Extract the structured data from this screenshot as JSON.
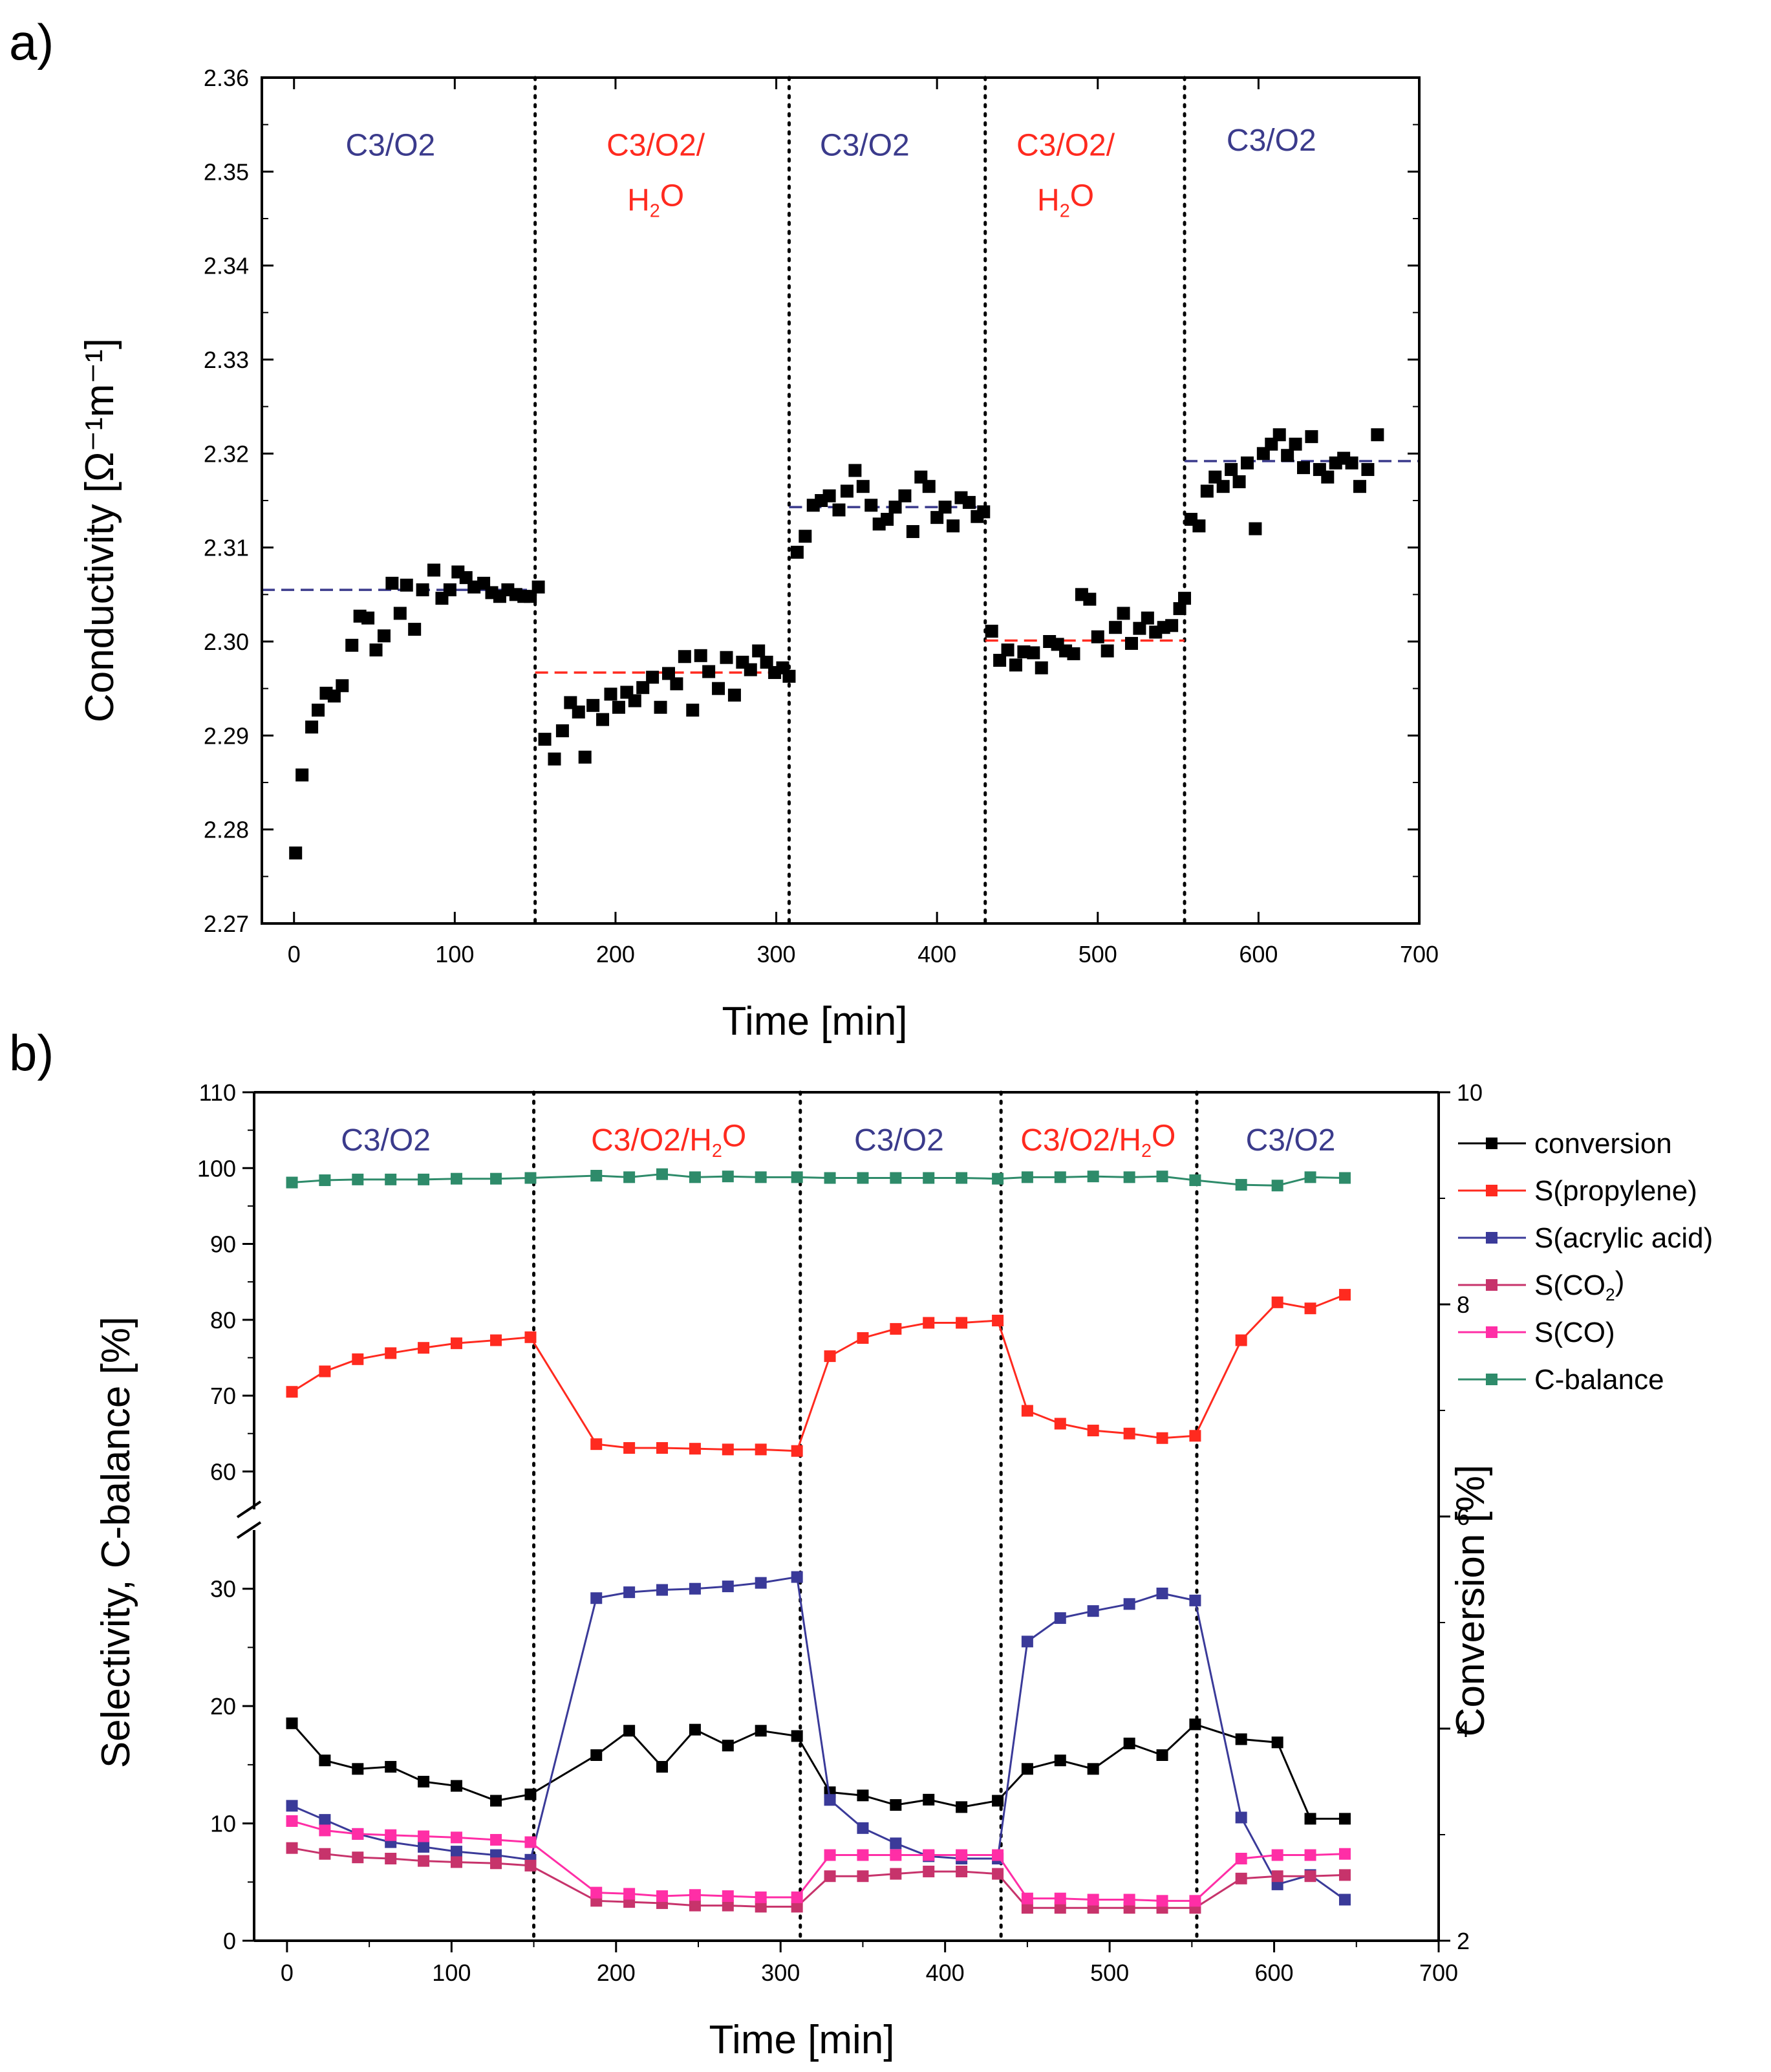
{
  "colors": {
    "blue": "#3b3b8c",
    "red": "#ff2a1f",
    "black": "#000000",
    "acrylic": "#3a3a99",
    "co2": "#c7336b",
    "co": "#ff2ea6",
    "cbalance": "#2e8b6a"
  },
  "chart_data": [
    {
      "id": "panel-a",
      "panel_label": "a)",
      "type": "scatter",
      "xlabel": "Time [min]",
      "ylabel": "Conductivity  [Ω⁻¹m⁻¹]",
      "xlim": [
        -20,
        700
      ],
      "ylim": [
        2.27,
        2.36
      ],
      "x_ticks": [
        0,
        100,
        200,
        300,
        400,
        500,
        600,
        700
      ],
      "y_ticks": [
        2.27,
        2.28,
        2.29,
        2.3,
        2.31,
        2.32,
        2.33,
        2.34,
        2.35,
        2.36
      ],
      "y_tick_labels": [
        "2.27",
        "2.28",
        "2.29",
        "2.30",
        "2.31",
        "2.32",
        "2.33",
        "2.34",
        "2.35",
        "2.36"
      ],
      "phase_boundaries": [
        150,
        308,
        430,
        554
      ],
      "phase_labels": [
        {
          "lines": [
            "C3/O2"
          ],
          "x": 60,
          "y": 2.3555,
          "color": "blue"
        },
        {
          "lines": [
            "C3/O2/",
            "H2O"
          ],
          "x": 225,
          "y": 2.3555,
          "color": "red"
        },
        {
          "lines": [
            "C3/O2"
          ],
          "x": 355,
          "y": 2.3555,
          "color": "blue"
        },
        {
          "lines": [
            "C3/O2/",
            "H2O"
          ],
          "x": 480,
          "y": 2.3555,
          "color": "red"
        },
        {
          "lines": [
            "C3/O2"
          ],
          "x": 608,
          "y": 2.356,
          "color": "blue"
        }
      ],
      "reference_lines": [
        {
          "x0": -20,
          "x1": 150,
          "y": 2.3055,
          "color": "blue"
        },
        {
          "x0": 150,
          "x1": 308,
          "y": 2.2967,
          "color": "red"
        },
        {
          "x0": 308,
          "x1": 430,
          "y": 2.3143,
          "color": "blue"
        },
        {
          "x0": 430,
          "x1": 554,
          "y": 2.3001,
          "color": "red"
        },
        {
          "x0": 554,
          "x1": 700,
          "y": 2.3192,
          "color": "blue"
        }
      ],
      "points": [
        [
          1,
          2.2775
        ],
        [
          5,
          2.2858
        ],
        [
          11,
          2.2909
        ],
        [
          15,
          2.2927
        ],
        [
          20,
          2.2945
        ],
        [
          25,
          2.2942
        ],
        [
          30,
          2.2953
        ],
        [
          36,
          2.2996
        ],
        [
          41,
          2.3027
        ],
        [
          46,
          2.3025
        ],
        [
          51,
          2.2991
        ],
        [
          56,
          2.3006
        ],
        [
          61,
          2.3062
        ],
        [
          66,
          2.303
        ],
        [
          70,
          2.306
        ],
        [
          75,
          2.3013
        ],
        [
          80,
          2.3055
        ],
        [
          87,
          2.3076
        ],
        [
          92,
          2.3046
        ],
        [
          97,
          2.3055
        ],
        [
          102,
          2.3074
        ],
        [
          107,
          2.3068
        ],
        [
          112,
          2.3058
        ],
        [
          118,
          2.3062
        ],
        [
          123,
          2.3052
        ],
        [
          128,
          2.3048
        ],
        [
          133,
          2.3055
        ],
        [
          138,
          2.305
        ],
        [
          143,
          2.3048
        ],
        [
          147,
          2.3048
        ],
        [
          152,
          2.3058
        ],
        [
          156,
          2.2896
        ],
        [
          162,
          2.2875
        ],
        [
          167,
          2.2905
        ],
        [
          172,
          2.2935
        ],
        [
          177,
          2.2925
        ],
        [
          181,
          2.2877
        ],
        [
          186,
          2.2932
        ],
        [
          192,
          2.2917
        ],
        [
          197,
          2.2944
        ],
        [
          202,
          2.293
        ],
        [
          207,
          2.2946
        ],
        [
          212,
          2.2937
        ],
        [
          217,
          2.2951
        ],
        [
          223,
          2.2962
        ],
        [
          228,
          2.293
        ],
        [
          233,
          2.2966
        ],
        [
          238,
          2.2955
        ],
        [
          243,
          2.2984
        ],
        [
          248,
          2.2927
        ],
        [
          253,
          2.2985
        ],
        [
          258,
          2.2968
        ],
        [
          264,
          2.295
        ],
        [
          269,
          2.2983
        ],
        [
          274,
          2.2943
        ],
        [
          279,
          2.2978
        ],
        [
          284,
          2.297
        ],
        [
          289,
          2.299
        ],
        [
          294,
          2.2978
        ],
        [
          299,
          2.2967
        ],
        [
          304,
          2.2972
        ],
        [
          308,
          2.2963
        ],
        [
          313,
          2.3095
        ],
        [
          318,
          2.3112
        ],
        [
          323,
          2.3145
        ],
        [
          328,
          2.315
        ],
        [
          333,
          2.3155
        ],
        [
          339,
          2.314
        ],
        [
          344,
          2.316
        ],
        [
          349,
          2.3182
        ],
        [
          354,
          2.3165
        ],
        [
          359,
          2.3145
        ],
        [
          364,
          2.3125
        ],
        [
          369,
          2.313
        ],
        [
          374,
          2.3143
        ],
        [
          380,
          2.3155
        ],
        [
          385,
          2.3117
        ],
        [
          390,
          2.3175
        ],
        [
          395,
          2.3165
        ],
        [
          400,
          2.3132
        ],
        [
          405,
          2.3143
        ],
        [
          410,
          2.3123
        ],
        [
          415,
          2.3153
        ],
        [
          420,
          2.3148
        ],
        [
          425,
          2.3133
        ],
        [
          429,
          2.3138
        ],
        [
          434,
          2.3011
        ],
        [
          439,
          2.298
        ],
        [
          444,
          2.2991
        ],
        [
          449,
          2.2975
        ],
        [
          454,
          2.2989
        ],
        [
          460,
          2.2988
        ],
        [
          465,
          2.2972
        ],
        [
          470,
          2.3
        ],
        [
          475,
          2.2997
        ],
        [
          480,
          2.299
        ],
        [
          485,
          2.2987
        ],
        [
          490,
          2.305
        ],
        [
          495,
          2.3045
        ],
        [
          500,
          2.3005
        ],
        [
          506,
          2.299
        ],
        [
          511,
          2.3015
        ],
        [
          516,
          2.303
        ],
        [
          521,
          2.2998
        ],
        [
          526,
          2.3014
        ],
        [
          531,
          2.3025
        ],
        [
          536,
          2.301
        ],
        [
          541,
          2.3015
        ],
        [
          546,
          2.3017
        ],
        [
          551,
          2.3035
        ],
        [
          554,
          2.3046
        ],
        [
          558,
          2.313
        ],
        [
          563,
          2.3123
        ],
        [
          568,
          2.316
        ],
        [
          573,
          2.3175
        ],
        [
          578,
          2.3165
        ],
        [
          583,
          2.3183
        ],
        [
          588,
          2.317
        ],
        [
          593,
          2.319
        ],
        [
          598,
          2.312
        ],
        [
          603,
          2.32
        ],
        [
          608,
          2.321
        ],
        [
          613,
          2.322
        ],
        [
          618,
          2.3198
        ],
        [
          623,
          2.321
        ],
        [
          628,
          2.3185
        ],
        [
          633,
          2.3218
        ],
        [
          638,
          2.3183
        ],
        [
          643,
          2.3175
        ],
        [
          648,
          2.319
        ],
        [
          653,
          2.3195
        ],
        [
          658,
          2.319
        ],
        [
          663,
          2.3165
        ],
        [
          668,
          2.3183
        ],
        [
          674,
          2.322
        ]
      ]
    },
    {
      "id": "panel-b",
      "panel_label": "b)",
      "type": "line",
      "xlabel": "Time [min]",
      "ylabel_left": "Selectivity, C-balance [%]",
      "ylabel_right": "Conversion [%]",
      "xlim": [
        -20,
        700
      ],
      "x_ticks": [
        0,
        100,
        200,
        300,
        400,
        500,
        600,
        700
      ],
      "y_left_lower": {
        "range": [
          0,
          35
        ],
        "ticks": [
          0,
          10,
          20,
          30
        ]
      },
      "y_left_upper": {
        "range": [
          55,
          110
        ],
        "ticks": [
          60,
          70,
          80,
          90,
          100,
          110
        ]
      },
      "y_right": {
        "range": [
          2,
          10
        ],
        "ticks": [
          2,
          4,
          6,
          8,
          10
        ]
      },
      "phase_boundaries": [
        150,
        312,
        434,
        553
      ],
      "phase_labels": [
        {
          "text": "C3/O2",
          "x": 60,
          "color": "blue"
        },
        {
          "text": "C3/O2/H2O",
          "x": 232,
          "color": "red"
        },
        {
          "text": "C3/O2",
          "x": 372,
          "color": "blue"
        },
        {
          "text": "C3/O2/H2O",
          "x": 493,
          "color": "red"
        },
        {
          "text": "C3/O2",
          "x": 610,
          "color": "blue"
        }
      ],
      "x": [
        3,
        23,
        43,
        63,
        83,
        103,
        127,
        148,
        188,
        208,
        228,
        248,
        268,
        288,
        310,
        330,
        350,
        370,
        390,
        410,
        432,
        450,
        470,
        490,
        512,
        532,
        552,
        580,
        602,
        622,
        643
      ],
      "series": [
        {
          "name": "conversion",
          "color": "black",
          "axis": "right",
          "values": [
            4.05,
            3.7,
            3.62,
            3.64,
            3.5,
            3.46,
            3.32,
            3.38,
            3.75,
            3.98,
            3.64,
            3.99,
            3.84,
            3.98,
            3.93,
            3.4,
            3.37,
            3.28,
            3.33,
            3.26,
            3.32,
            3.62,
            3.7,
            3.62,
            3.86,
            3.75,
            4.04,
            3.9,
            3.87,
            3.15,
            3.15
          ]
        },
        {
          "name": "S(propylene)",
          "color": "red",
          "axis": "left",
          "values": [
            70.5,
            73.2,
            74.8,
            75.6,
            76.3,
            76.9,
            77.3,
            77.7,
            63.6,
            63.1,
            63.1,
            63.0,
            62.9,
            62.9,
            62.7,
            75.2,
            77.6,
            78.8,
            79.6,
            79.6,
            79.9,
            68.0,
            66.3,
            65.4,
            65.0,
            64.4,
            64.7,
            77.3,
            82.3,
            81.5,
            83.3
          ]
        },
        {
          "name": "S(acrylic acid)",
          "color": "acrylic",
          "axis": "left",
          "values": [
            11.5,
            10.3,
            9.1,
            8.4,
            8.0,
            7.6,
            7.3,
            6.9,
            29.2,
            29.7,
            29.9,
            30.0,
            30.2,
            30.5,
            31.0,
            12.0,
            9.6,
            8.3,
            7.2,
            7.0,
            7.0,
            25.5,
            27.5,
            28.1,
            28.7,
            29.6,
            29.0,
            10.5,
            4.8,
            5.6,
            3.5
          ]
        },
        {
          "name": "S(CO2)",
          "color": "co2",
          "axis": "left",
          "values": [
            7.9,
            7.4,
            7.1,
            7.0,
            6.8,
            6.7,
            6.6,
            6.4,
            3.4,
            3.3,
            3.2,
            3.0,
            3.0,
            2.9,
            2.9,
            5.5,
            5.5,
            5.7,
            5.9,
            5.9,
            5.7,
            2.8,
            2.8,
            2.8,
            2.8,
            2.8,
            2.8,
            5.3,
            5.5,
            5.5,
            5.6
          ]
        },
        {
          "name": "S(CO)",
          "color": "co",
          "axis": "left",
          "values": [
            10.2,
            9.4,
            9.1,
            9.0,
            8.9,
            8.8,
            8.6,
            8.4,
            4.1,
            4.0,
            3.8,
            3.9,
            3.8,
            3.7,
            3.7,
            7.3,
            7.3,
            7.3,
            7.3,
            7.3,
            7.3,
            3.6,
            3.6,
            3.5,
            3.5,
            3.4,
            3.4,
            7.0,
            7.3,
            7.3,
            7.4
          ]
        },
        {
          "name": "C-balance",
          "color": "cbalance",
          "axis": "left",
          "values": [
            98.1,
            98.4,
            98.5,
            98.5,
            98.5,
            98.6,
            98.6,
            98.7,
            99.0,
            98.8,
            99.2,
            98.8,
            98.9,
            98.8,
            98.8,
            98.7,
            98.7,
            98.7,
            98.7,
            98.7,
            98.6,
            98.8,
            98.8,
            98.9,
            98.8,
            98.9,
            98.4,
            97.8,
            97.7,
            98.8,
            98.7
          ]
        }
      ],
      "legend": [
        "conversion",
        "S(propylene)",
        "S(acrylic acid)",
        "S(CO2)",
        "S(CO)",
        "C-balance"
      ]
    }
  ]
}
